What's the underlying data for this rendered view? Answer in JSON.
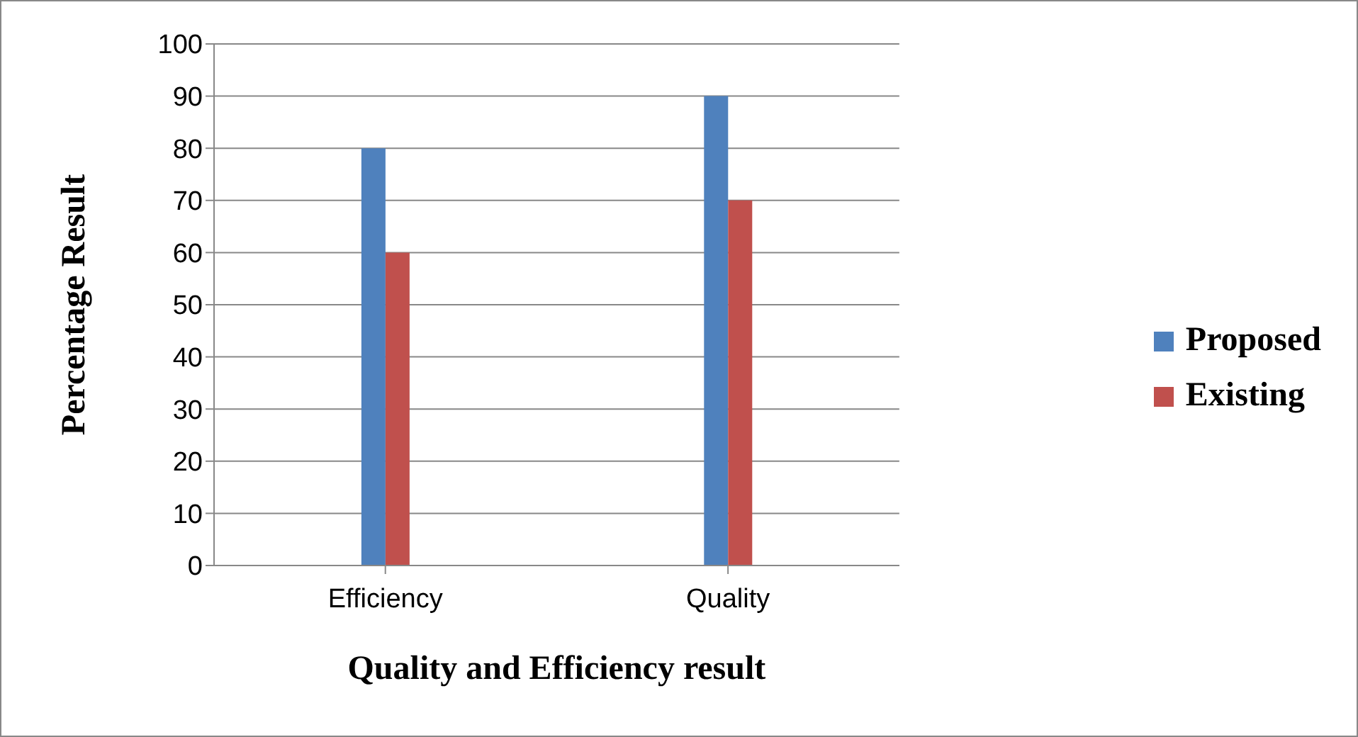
{
  "chart_data": {
    "type": "bar",
    "xlabel": "Quality and Efficiency result",
    "ylabel": "Percentage Result",
    "categories": [
      "Efficiency",
      "Quality"
    ],
    "series": [
      {
        "name": "Proposed",
        "color": "#4f81bd",
        "values": [
          80,
          90
        ]
      },
      {
        "name": "Existing",
        "color": "#c0504d",
        "values": [
          60,
          70
        ]
      }
    ],
    "ylim": [
      0,
      100
    ],
    "yticks": [
      0,
      10,
      20,
      30,
      40,
      50,
      60,
      70,
      80,
      90,
      100
    ],
    "grid": "y",
    "legend": "right"
  }
}
